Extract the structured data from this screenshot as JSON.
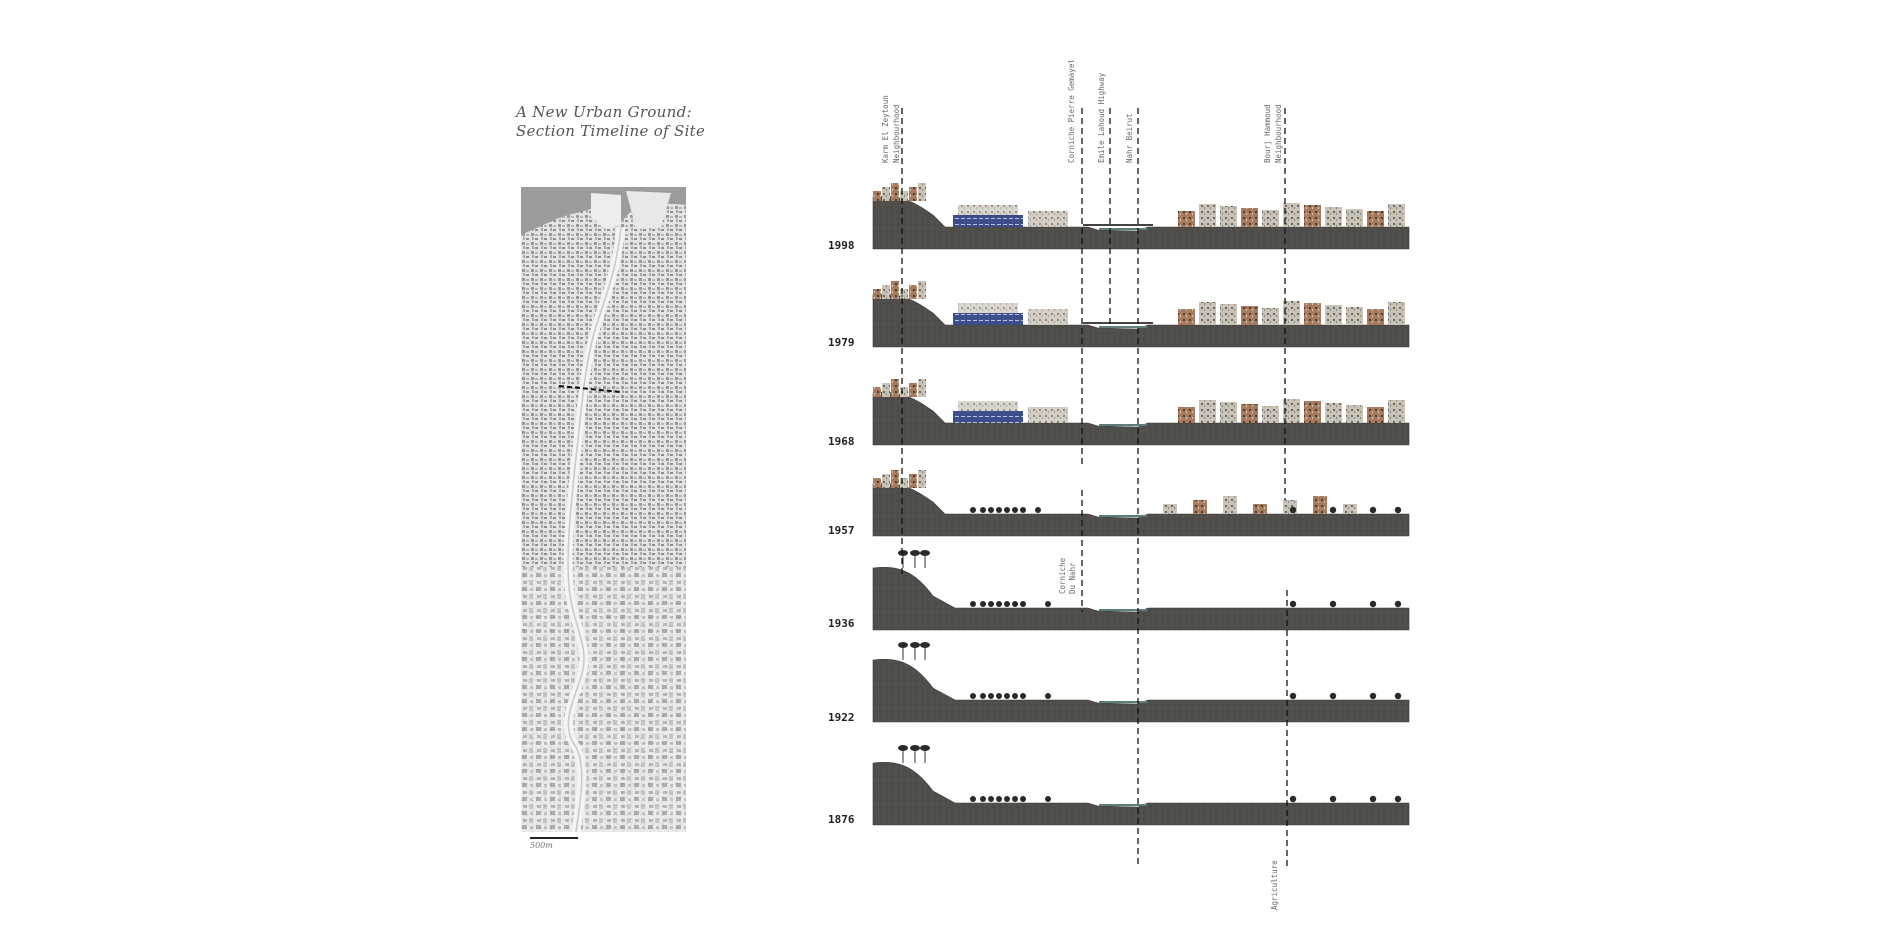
{
  "title": {
    "line1": "A New Urban Ground:",
    "line2": "Section Timeline of Site"
  },
  "scale_label": "500m",
  "years": [
    "1998",
    "1979",
    "1968",
    "1957",
    "1936",
    "1922",
    "1876"
  ],
  "labels": {
    "karm_1": "Karm El Zeytoun",
    "karm_2": "Neighbourhood",
    "corniche_gemayel": "Corniche Pierre Gemayel",
    "emile_lahoud": "Emile Lahoud Highway",
    "nahr_beirut": "Nahr Beirut",
    "bourj_1": "Bourj Hammoud",
    "bourj_2": "Neighbourhood",
    "corniche_nahr_1": "Corniche",
    "corniche_nahr_2": "Du Nahr",
    "agriculture": "Agriculture"
  },
  "colors": {
    "ground": "#4d4c48",
    "ground_light": "#6a6863",
    "water": "#5d7d7a",
    "map_bg": "#dcdcdc",
    "building_blue": "#3d4f8a",
    "building_brick": "#8b5a45"
  }
}
